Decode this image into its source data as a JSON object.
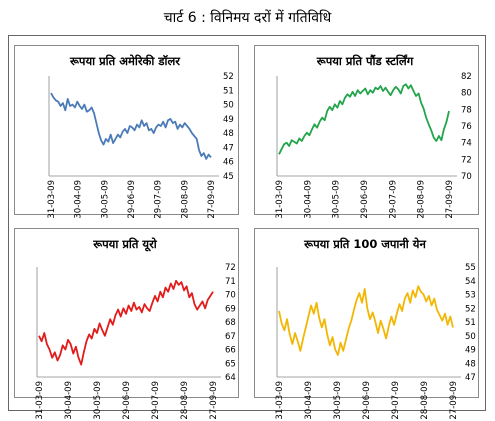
{
  "figure_title": "चार्ट 6 : विनिमय दरों में गतिविधि",
  "chart_data": [
    {
      "type": "line",
      "title": "रूपया प्रति अमेरिकी डॉलर",
      "color": "#4a7bb7",
      "x_ticks": [
        "31-03-09",
        "30-04-09",
        "30-05-09",
        "29-06-09",
        "29-07-09",
        "28-08-09",
        "27-09-09"
      ],
      "ylim": [
        45,
        52
      ],
      "y_ticks": [
        "52",
        "51",
        "50",
        "49",
        "48",
        "47",
        "46",
        "45"
      ],
      "series": [
        {
          "values": [
            50.8,
            50.5,
            50.3,
            50.2,
            49.9,
            50.1,
            49.6,
            50.4,
            49.9,
            50.0,
            49.8,
            50.2,
            49.9,
            49.7,
            50.0,
            49.5,
            49.6,
            49.8,
            49.4,
            48.7,
            48.0,
            47.5,
            47.2,
            47.6,
            47.4,
            47.9,
            47.3,
            47.6,
            47.9,
            47.7,
            48.1,
            48.3,
            48.0,
            48.5,
            48.4,
            48.2,
            48.6,
            48.4,
            48.9,
            48.5,
            48.7,
            48.2,
            48.3,
            48.0,
            48.4,
            48.6,
            48.5,
            48.8,
            48.4,
            48.9,
            49.0,
            48.7,
            48.8,
            48.3,
            48.6,
            48.4,
            48.7,
            48.5,
            48.3,
            48.0,
            47.8,
            47.6,
            46.8,
            46.4,
            46.6,
            46.2,
            46.5,
            46.3
          ]
        }
      ]
    },
    {
      "type": "line",
      "title": "रूपया प्रति पौंड स्टर्लिंग",
      "color": "#22a54a",
      "x_ticks": [
        "31-03-09",
        "30-04-09",
        "30-05-09",
        "29-06-09",
        "29-07-09",
        "28-08-09",
        "27-09-09"
      ],
      "ylim": [
        70,
        82
      ],
      "y_ticks": [
        "82",
        "80",
        "78",
        "76",
        "74",
        "72",
        "70"
      ],
      "series": [
        {
          "values": [
            72.6,
            73.2,
            73.8,
            74.0,
            73.6,
            74.3,
            74.1,
            73.9,
            74.5,
            74.2,
            74.8,
            75.2,
            74.9,
            75.6,
            76.2,
            75.8,
            76.5,
            77.0,
            76.7,
            77.8,
            78.3,
            77.9,
            78.6,
            78.2,
            79.0,
            78.6,
            79.4,
            79.8,
            79.5,
            80.1,
            79.6,
            80.3,
            79.9,
            80.2,
            80.5,
            79.8,
            80.3,
            80.0,
            80.6,
            80.4,
            80.8,
            80.2,
            80.6,
            80.1,
            79.7,
            80.3,
            80.7,
            80.4,
            79.9,
            80.8,
            81.0,
            80.5,
            80.9,
            80.2,
            79.6,
            79.9,
            78.8,
            78.1,
            77.0,
            76.2,
            75.5,
            74.6,
            74.2,
            74.8,
            74.3,
            75.6,
            76.5,
            77.8
          ]
        }
      ]
    },
    {
      "type": "line",
      "title": "रूपया प्रति यूरो",
      "color": "#e21b1b",
      "x_ticks": [
        "31-03-09",
        "30-04-09",
        "30-05-09",
        "29-06-09",
        "29-07-09",
        "28-08-09",
        "27-09-09"
      ],
      "ylim": [
        64,
        72
      ],
      "y_ticks": [
        "72",
        "71",
        "70",
        "69",
        "68",
        "67",
        "66",
        "65",
        "64"
      ],
      "series": [
        {
          "values": [
            67.0,
            66.6,
            67.2,
            66.4,
            66.0,
            65.4,
            65.8,
            65.2,
            65.6,
            66.3,
            66.0,
            66.7,
            66.4,
            65.7,
            66.2,
            65.4,
            64.9,
            65.8,
            66.6,
            67.1,
            66.8,
            67.5,
            67.2,
            67.9,
            67.4,
            67.0,
            67.6,
            68.2,
            67.8,
            68.5,
            68.9,
            68.4,
            69.0,
            68.6,
            69.2,
            68.8,
            69.4,
            68.9,
            69.1,
            68.7,
            69.3,
            69.0,
            68.8,
            69.4,
            69.9,
            69.5,
            70.2,
            69.8,
            70.5,
            70.2,
            70.8,
            70.4,
            71.0,
            70.7,
            70.9,
            70.3,
            70.6,
            69.8,
            70.1,
            69.3,
            68.9,
            69.2,
            69.5,
            69.0,
            69.6,
            69.9,
            70.2
          ]
        }
      ]
    },
    {
      "type": "line",
      "title": "रूपया प्रति 100 जपानी येन",
      "color": "#f2b705",
      "x_ticks": [
        "31-03-09",
        "30-04-09",
        "30-05-09",
        "29-06-09",
        "29-07-09",
        "28-08-09",
        "27-09-09"
      ],
      "ylim": [
        47,
        55
      ],
      "y_ticks": [
        "55",
        "54",
        "53",
        "52",
        "51",
        "50",
        "49",
        "48",
        "47"
      ],
      "series": [
        {
          "values": [
            51.8,
            50.9,
            50.4,
            51.2,
            50.1,
            49.4,
            50.2,
            49.6,
            48.9,
            49.8,
            50.6,
            51.4,
            52.2,
            51.6,
            52.4,
            51.3,
            50.6,
            51.2,
            50.1,
            49.3,
            49.9,
            49.0,
            48.6,
            49.5,
            48.9,
            49.7,
            50.5,
            51.1,
            51.9,
            52.6,
            53.1,
            52.4,
            53.4,
            52.0,
            51.2,
            51.7,
            51.0,
            50.2,
            51.1,
            50.5,
            49.8,
            50.7,
            51.4,
            50.8,
            51.6,
            52.3,
            51.8,
            52.7,
            53.1,
            52.4,
            53.3,
            52.8,
            53.6,
            53.2,
            53.0,
            52.5,
            52.9,
            52.2,
            52.7,
            51.9,
            51.5,
            51.1,
            51.6,
            50.8,
            51.4,
            50.6
          ]
        }
      ]
    }
  ]
}
